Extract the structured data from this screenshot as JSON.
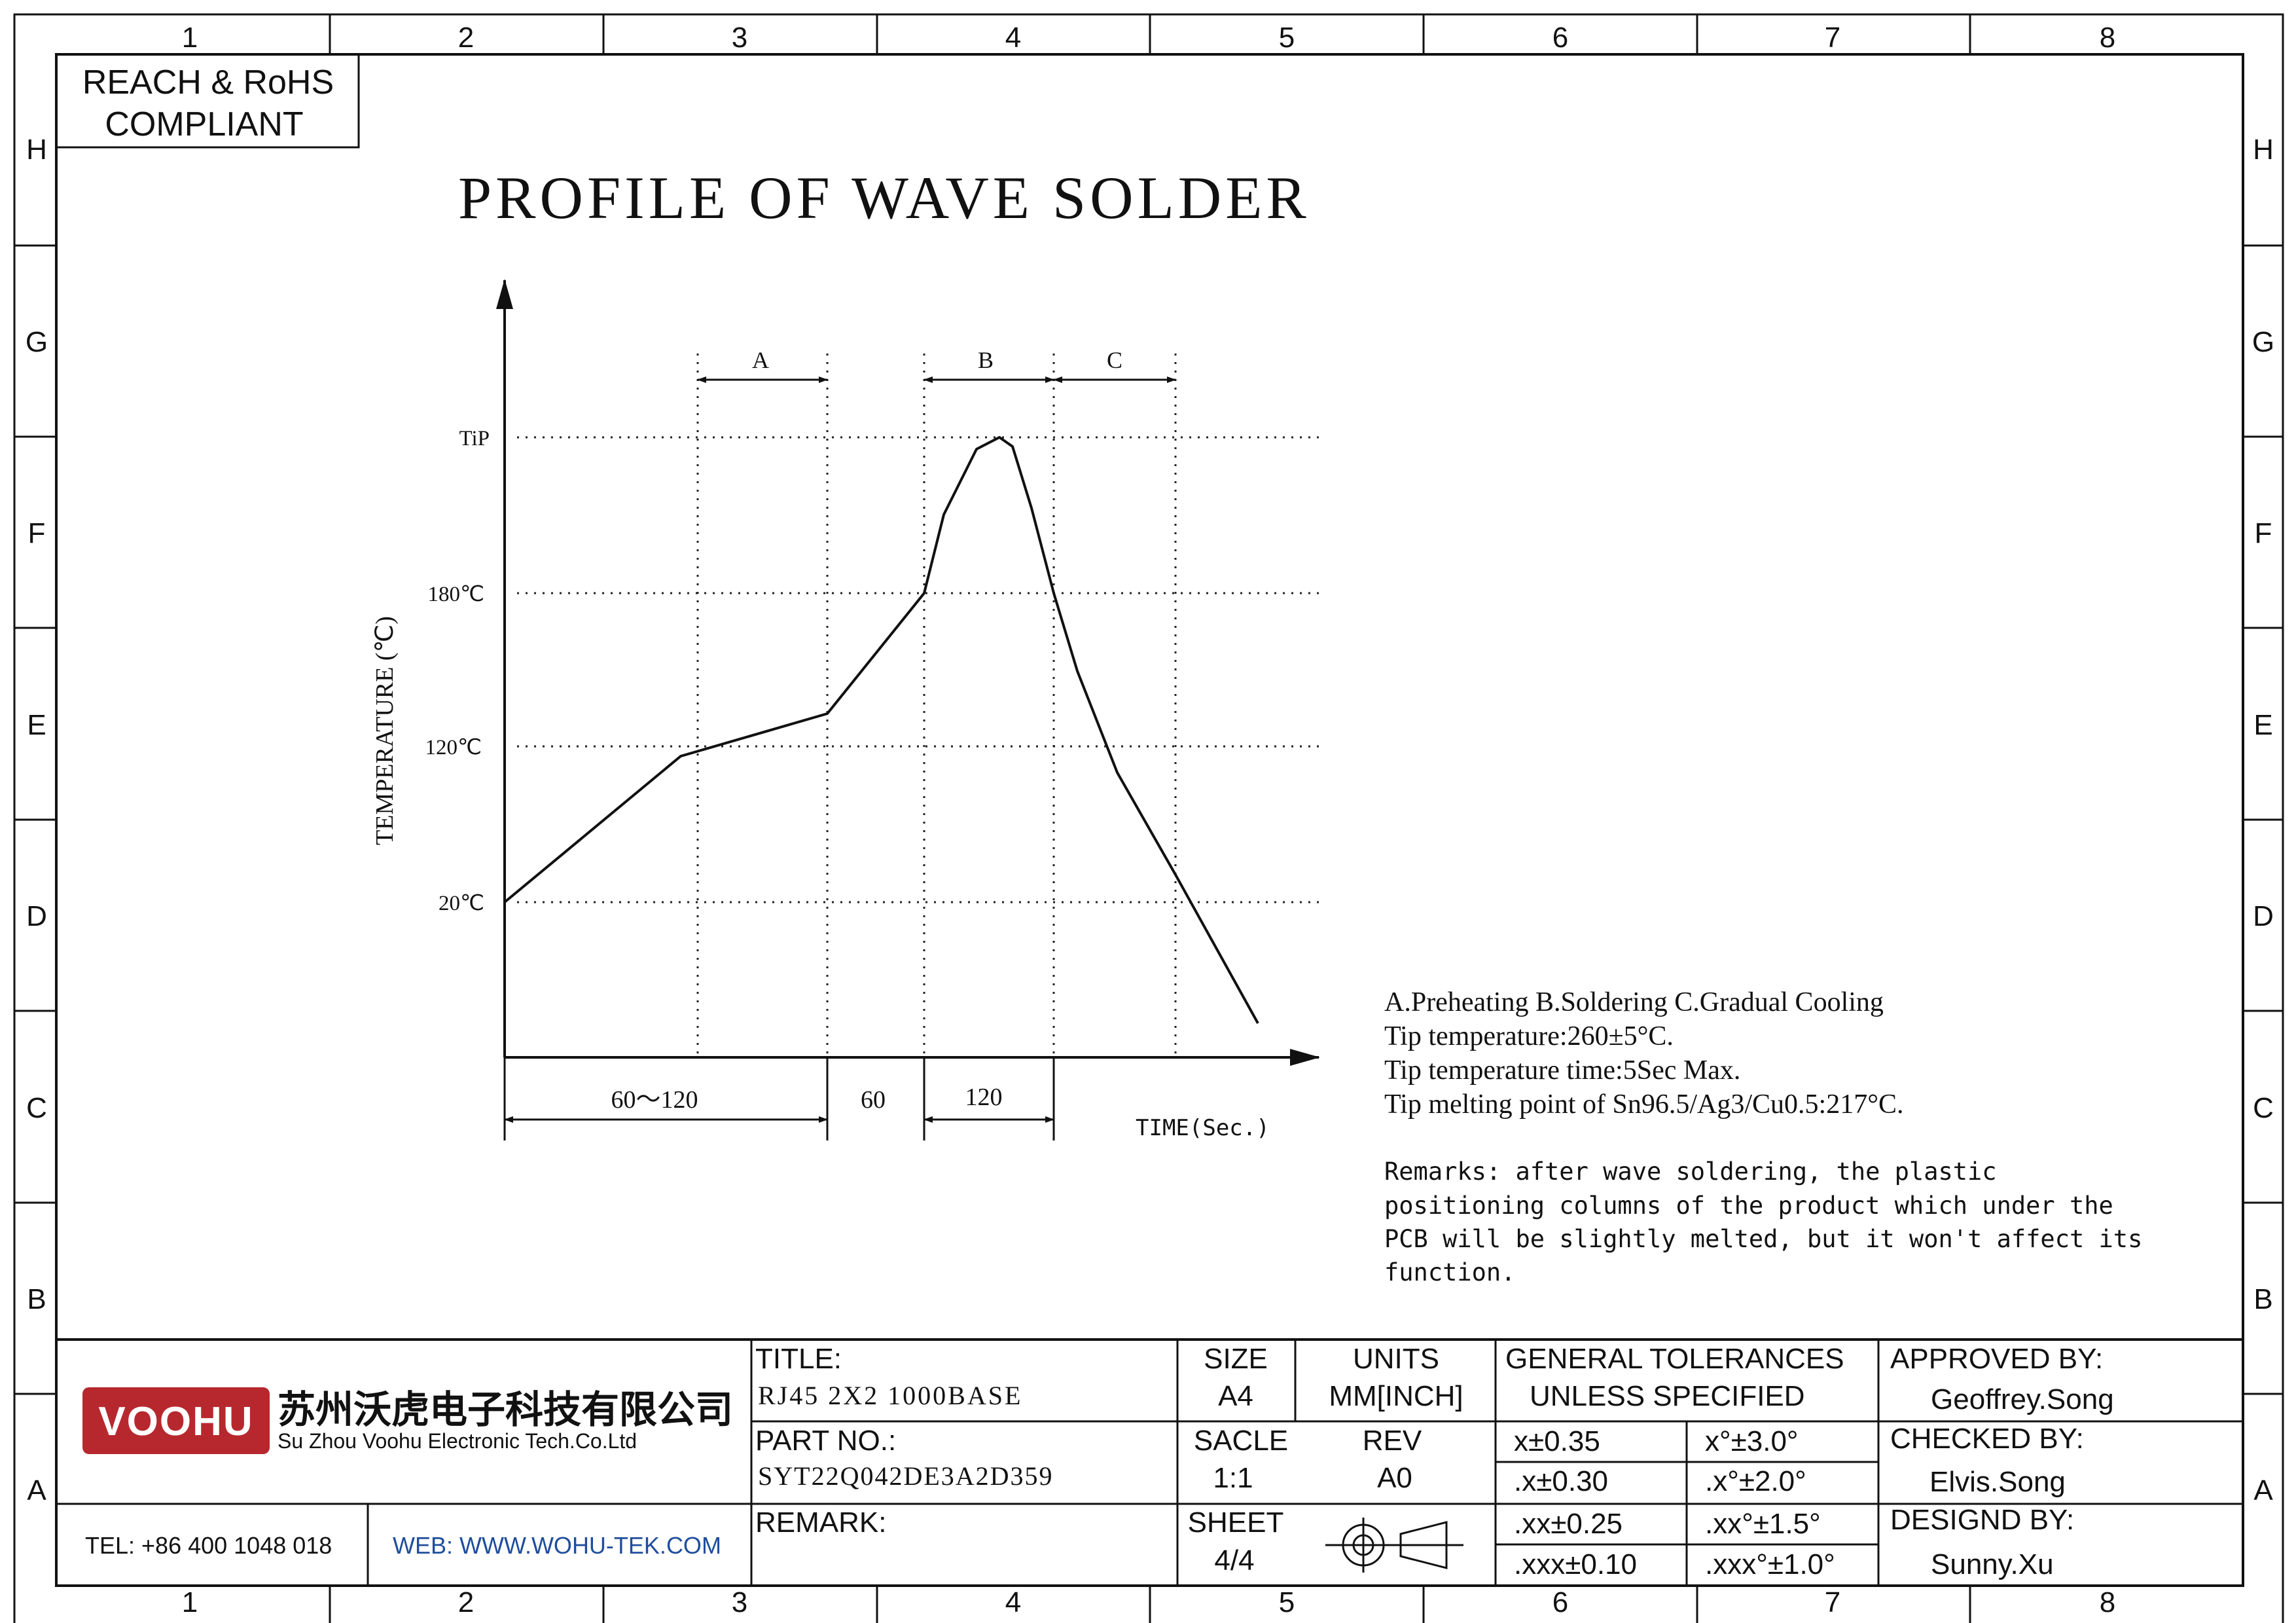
{
  "border": {
    "columns": [
      "1",
      "2",
      "3",
      "4",
      "5",
      "6",
      "7",
      "8"
    ],
    "rows": [
      "H",
      "G",
      "F",
      "E",
      "D",
      "C",
      "B",
      "A"
    ]
  },
  "compliance": {
    "line1": "REACH & RoHS",
    "line2": "COMPLIANT"
  },
  "diagram": {
    "title": "PROFILE OF WAVE SOLDER",
    "y_axis_label": "TEMPERATURE (℃)",
    "x_axis_label": "TIME(Sec.)",
    "zones": [
      {
        "label": "A",
        "name": "Preheating"
      },
      {
        "label": "B",
        "name": "Soldering"
      },
      {
        "label": "C",
        "name": "Gradual Cooling"
      }
    ],
    "temperature_levels": [
      "TiP",
      "180℃",
      "120℃",
      "20℃"
    ],
    "time_segments": [
      "60～120",
      "60",
      "120"
    ]
  },
  "notes": {
    "lines": [
      "A.Preheating  B.Soldering  C.Gradual Cooling",
      "Tip temperature:260±5°C.",
      "Tip temperature time:5Sec Max.",
      "Tip melting point of Sn96.5/Ag3/Cu0.5:217°C."
    ],
    "remarks": [
      "Remarks: after wave soldering, the plastic",
      "positioning columns of the product  which under the",
      "PCB will be slightly melted, but it won't affect its",
      "function."
    ]
  },
  "title_block": {
    "logo_text": "VOOHU",
    "company_cn": "苏州沃虎电子科技有限公司",
    "company_en": "Su Zhou Voohu Electronic Tech.Co.Ltd",
    "tel": "TEL: +86 400 1048 018",
    "web": "WEB: WWW.WOHU-TEK.COM",
    "title_label": "TITLE:",
    "title_value": "RJ45 2X2 1000BASE",
    "part_label": "PART NO.:",
    "part_value": "SYT22Q042DE3A2D359",
    "remark_label": "REMARK:",
    "size_label": "SIZE",
    "size_value": "A4",
    "units_label": "UNITS",
    "units_value": "MM[INCH]",
    "scale_label": "SACLE",
    "scale_value": "1:1",
    "rev_label": "REV",
    "rev_value": "A0",
    "sheet_label": "SHEET",
    "sheet_value": "4/4",
    "tolerance_title_1": "GENERAL TOLERANCES",
    "tolerance_title_2": "UNLESS SPECIFIED",
    "tolerances": [
      [
        "x±0.35",
        "x°±3.0°"
      ],
      [
        ".x±0.30",
        ".x°±2.0°"
      ],
      [
        ".xx±0.25",
        ".xx°±1.5°"
      ],
      [
        ".xxx±0.10",
        ".xxx°±1.0°"
      ]
    ],
    "approved_label": "APPROVED BY:",
    "approved_name": "Geoffrey.Song",
    "checked_label": "CHECKED BY:",
    "checked_name": "Elvis.Song",
    "designed_label": "DESIGND BY:",
    "designed_name": "Sunny.Xu"
  },
  "colors": {
    "logo_red": "#b7282e",
    "web_blue": "#1f4e9c",
    "line": "#111111"
  }
}
